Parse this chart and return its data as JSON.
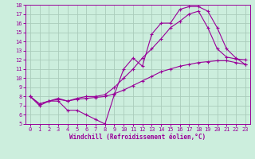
{
  "xlabel": "Windchill (Refroidissement éolien,°C)",
  "bg_color": "#cceedd",
  "line_color": "#990099",
  "grid_color": "#aaccbb",
  "xlim": [
    -0.5,
    23.5
  ],
  "ylim": [
    5,
    18
  ],
  "xticks": [
    0,
    1,
    2,
    3,
    4,
    5,
    6,
    7,
    8,
    9,
    10,
    11,
    12,
    13,
    14,
    15,
    16,
    17,
    18,
    19,
    20,
    21,
    22,
    23
  ],
  "yticks": [
    5,
    6,
    7,
    8,
    9,
    10,
    11,
    12,
    13,
    14,
    15,
    16,
    17,
    18
  ],
  "line1_x": [
    0,
    1,
    2,
    3,
    4,
    5,
    6,
    7,
    8,
    9,
    10,
    11,
    12,
    13,
    14,
    15,
    16,
    17,
    18,
    19,
    20,
    21,
    22,
    23
  ],
  "line1_y": [
    8,
    7,
    7.5,
    7.5,
    6.5,
    6.5,
    6.0,
    5.5,
    5.0,
    8.2,
    11.0,
    12.2,
    11.3,
    14.8,
    16.0,
    16.0,
    17.5,
    17.8,
    17.8,
    17.3,
    15.5,
    13.2,
    12.2,
    11.5
  ],
  "line2_x": [
    0,
    1,
    2,
    3,
    4,
    5,
    6,
    7,
    8,
    9,
    10,
    11,
    12,
    13,
    14,
    15,
    16,
    17,
    18,
    19,
    20,
    21,
    22,
    23
  ],
  "line2_y": [
    8.0,
    7.2,
    7.5,
    7.7,
    7.5,
    7.7,
    7.8,
    7.9,
    8.0,
    8.3,
    8.7,
    9.2,
    9.7,
    10.2,
    10.7,
    11.0,
    11.3,
    11.5,
    11.7,
    11.8,
    11.9,
    11.9,
    11.7,
    11.5
  ],
  "line3_x": [
    0,
    1,
    2,
    3,
    4,
    5,
    6,
    7,
    8,
    9,
    10,
    11,
    12,
    13,
    14,
    15,
    16,
    17,
    18,
    19,
    20,
    21,
    22,
    23
  ],
  "line3_y": [
    8,
    7.2,
    7.5,
    7.8,
    7.5,
    7.8,
    8.0,
    8.0,
    8.2,
    9.0,
    10.0,
    11.0,
    12.2,
    13.2,
    14.3,
    15.5,
    16.2,
    17.0,
    17.3,
    15.5,
    13.2,
    12.3,
    12.1,
    12.0
  ]
}
